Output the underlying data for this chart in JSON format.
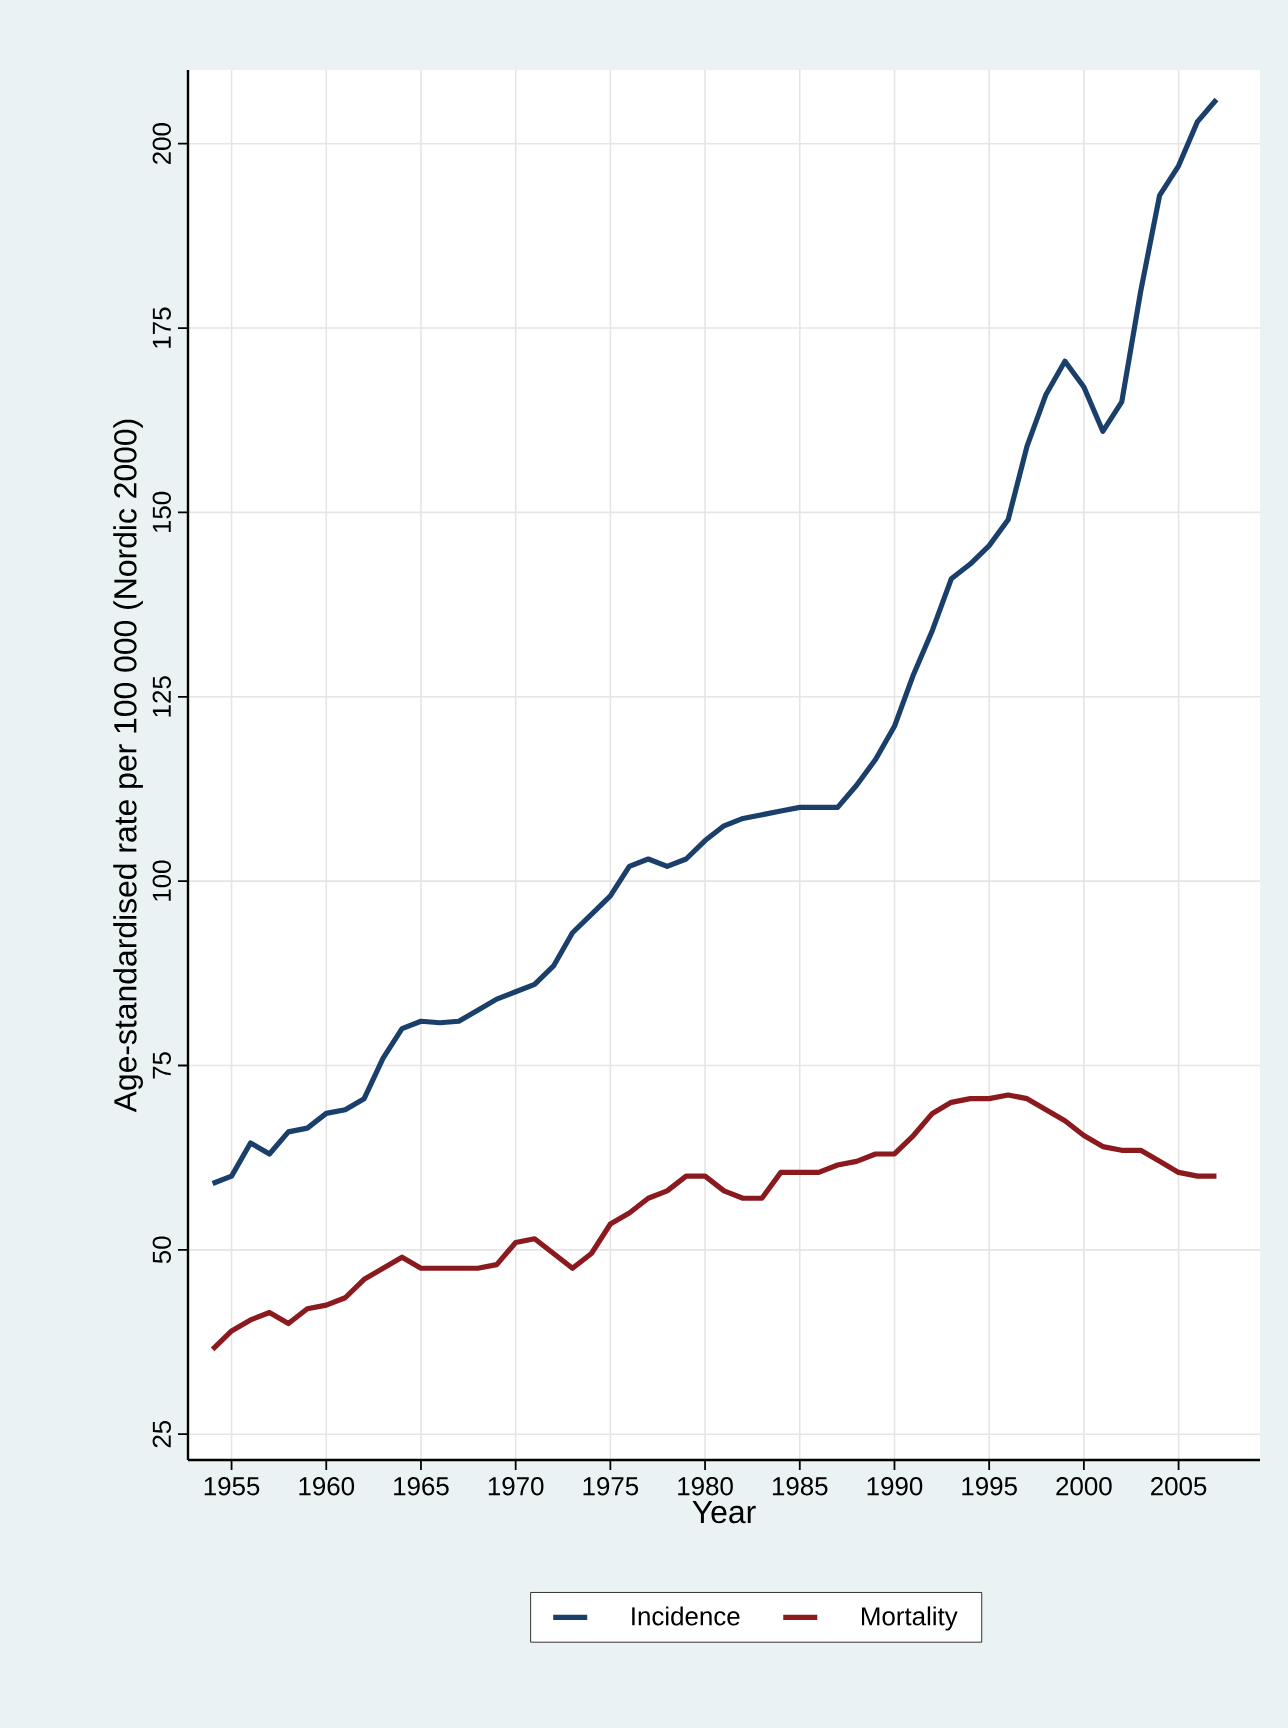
{
  "chart_data": {
    "type": "line",
    "xlabel": "Year",
    "ylabel": "Age-standardised rate per 100 000 (Nordic 2000)",
    "x": [
      1954,
      1955,
      1956,
      1957,
      1958,
      1959,
      1960,
      1961,
      1962,
      1963,
      1964,
      1965,
      1966,
      1967,
      1968,
      1969,
      1970,
      1971,
      1972,
      1973,
      1974,
      1975,
      1976,
      1977,
      1978,
      1979,
      1980,
      1981,
      1982,
      1983,
      1984,
      1985,
      1986,
      1987,
      1988,
      1989,
      1990,
      1991,
      1992,
      1993,
      1994,
      1995,
      1996,
      1997,
      1998,
      1999,
      2000,
      2001,
      2002,
      2003,
      2004,
      2005,
      2006,
      2007
    ],
    "series": [
      {
        "name": "Incidence",
        "color": "#1a3f6b",
        "values": [
          59,
          60,
          64.5,
          63,
          66,
          66.5,
          68.5,
          69,
          70.5,
          76,
          80,
          81,
          80.8,
          81,
          82.5,
          84,
          85,
          86,
          88.5,
          93,
          95.5,
          98,
          102,
          103,
          102,
          103,
          105.5,
          107.5,
          108.5,
          109,
          109.5,
          110,
          110,
          110,
          113,
          116.5,
          121,
          128,
          134,
          141,
          143,
          145.5,
          149,
          159,
          166,
          170.5,
          167,
          161,
          165,
          180,
          193,
          197,
          203,
          206
        ]
      },
      {
        "name": "Mortality",
        "color": "#8b1a1f",
        "values": [
          36.5,
          39,
          40.5,
          41.5,
          40,
          42,
          42.5,
          43.5,
          46,
          47.5,
          49,
          47.5,
          47.5,
          47.5,
          47.5,
          48,
          51,
          51.5,
          49.5,
          47.5,
          49.5,
          53.5,
          55,
          57,
          58,
          60,
          60,
          58,
          57,
          57,
          60.5,
          60.5,
          60.5,
          61.5,
          62,
          63,
          63,
          65.5,
          68.5,
          70,
          70.5,
          70.5,
          71,
          70.5,
          69,
          67.5,
          65.5,
          64,
          63.5,
          63.5,
          62,
          60.5,
          60,
          60
        ]
      }
    ],
    "xlim": [
      1952.7,
      2009.3
    ],
    "ylim": [
      21.5,
      210
    ],
    "xticks": [
      1955,
      1960,
      1965,
      1970,
      1975,
      1980,
      1985,
      1990,
      1995,
      2000,
      2005
    ],
    "yticks": [
      25,
      50,
      75,
      100,
      125,
      150,
      175,
      200
    ],
    "grid": true,
    "legend": "bottom",
    "line_style": "solid",
    "marker": "none"
  }
}
